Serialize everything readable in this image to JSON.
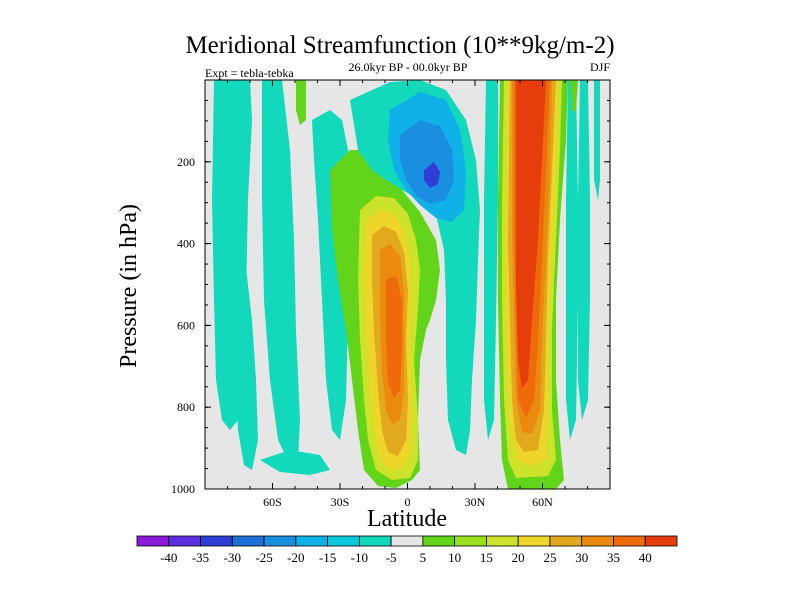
{
  "chart_data": {
    "type": "contour",
    "title": "Meridional Streamfunction (10**9kg/m-2)",
    "subtitle": "26.0kyr BP - 00.0kyr BP",
    "left_note": "Expt = tebla-tebka",
    "right_note": "DJF",
    "xlabel": "Latitude",
    "ylabel": "Pressure (in hPa)",
    "xlim": [
      -90,
      90
    ],
    "ylim": [
      0,
      1000
    ],
    "x_ticks": [
      {
        "value": -60,
        "label": "60S"
      },
      {
        "value": -30,
        "label": "30S"
      },
      {
        "value": 0,
        "label": "0"
      },
      {
        "value": 30,
        "label": "30N"
      },
      {
        "value": 60,
        "label": "60N"
      }
    ],
    "y_ticks": [
      {
        "value": 200,
        "label": "200"
      },
      {
        "value": 400,
        "label": "400"
      },
      {
        "value": 600,
        "label": "600"
      },
      {
        "value": 800,
        "label": "800"
      },
      {
        "value": 1000,
        "label": "1000"
      }
    ],
    "colorbar": {
      "labels": [
        "-40",
        "-35",
        "-30",
        "-25",
        "-20",
        "-15",
        "-10",
        "-5",
        "5",
        "10",
        "15",
        "20",
        "25",
        "30",
        "35",
        "40"
      ],
      "colors": [
        "#8a1bd8",
        "#5a2ee0",
        "#2f3fd6",
        "#1f6fd8",
        "#1a8fe0",
        "#10b0e8",
        "#08c8dc",
        "#12d8bc",
        "#e6e6e6",
        "#62d41a",
        "#9ae01e",
        "#cde22a",
        "#eed52a",
        "#e2a81e",
        "#ec8a10",
        "#ef6a0a",
        "#e63e0a"
      ]
    },
    "features": [
      {
        "name": "Northern mid-latitude positive cell",
        "lat_range": [
          48,
          63
        ],
        "pressure_range": [
          0,
          1000
        ],
        "peak_value": 40
      },
      {
        "name": "Equatorial positive cell",
        "lat_range": [
          -12,
          10
        ],
        "pressure_range": [
          280,
          950
        ],
        "peak_value": 35
      },
      {
        "name": "Negative cell near 10N",
        "lat_range": [
          -2,
          28
        ],
        "pressure_range": [
          100,
          320
        ],
        "peak_value": -25
      },
      {
        "name": "Southern band weak negative",
        "lat_range": [
          -90,
          -35
        ],
        "pressure_range": [
          0,
          1000
        ],
        "peak_value": -10
      }
    ],
    "grid": false
  }
}
